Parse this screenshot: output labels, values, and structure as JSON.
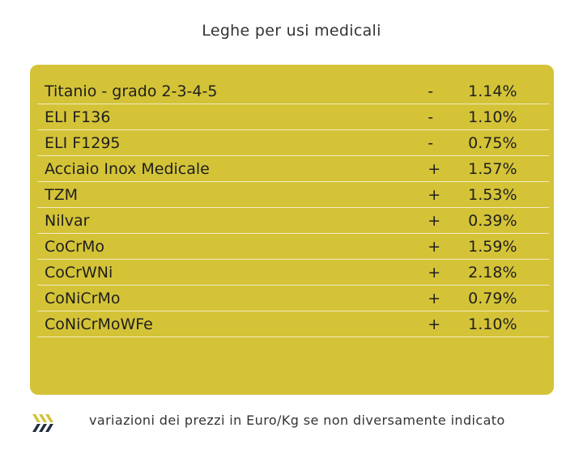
{
  "title": "Leghe per usi medicali",
  "rows": [
    {
      "name": "Titanio - grado 2-3-4-5",
      "sign": "-",
      "value": "1.14%"
    },
    {
      "name": "ELI F136",
      "sign": "-",
      "value": "1.10%"
    },
    {
      "name": "ELI F1295",
      "sign": "-",
      "value": "0.75%"
    },
    {
      "name": "Acciaio Inox Medicale",
      "sign": "+",
      "value": "1.57%"
    },
    {
      "name": "TZM",
      "sign": "+",
      "value": "1.53%"
    },
    {
      "name": "Nilvar",
      "sign": "+",
      "value": "0.39%"
    },
    {
      "name": "CoCrMo",
      "sign": "+",
      "value": "1.59%"
    },
    {
      "name": "CoCrWNi",
      "sign": "+",
      "value": "2.18%"
    },
    {
      "name": "CoNiCrMo",
      "sign": "+",
      "value": "0.79%"
    },
    {
      "name": "CoNiCrMoWFe",
      "sign": "+",
      "value": "1.10%"
    }
  ],
  "footer": "variazioni dei prezzi in Euro/Kg se non diversamente indicato",
  "colors": {
    "panel": "#d4c337",
    "logo_yellow": "#d4c337",
    "logo_dark": "#1f2f3f"
  },
  "icons": {
    "logo": "stripes-logo-icon"
  }
}
